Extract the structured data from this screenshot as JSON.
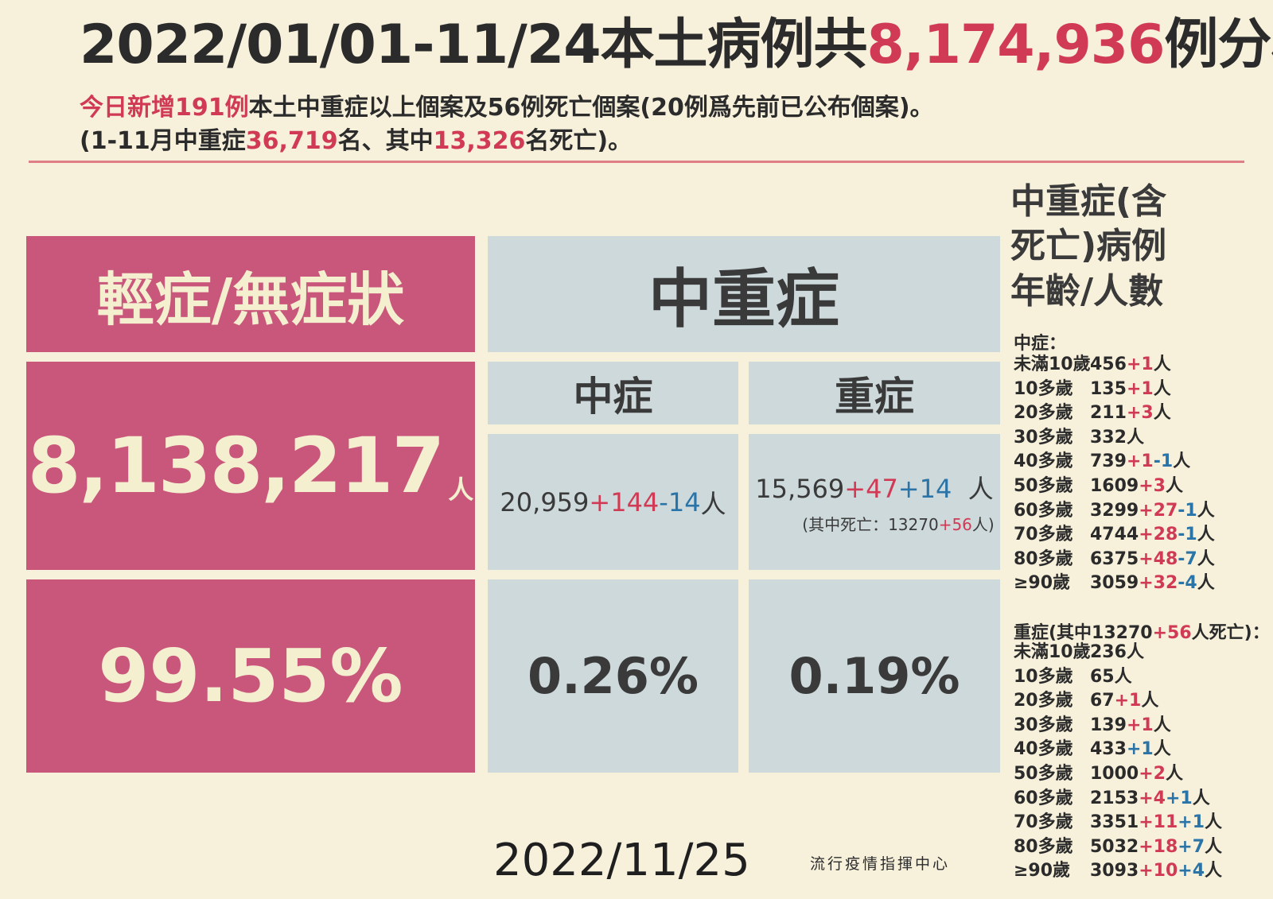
{
  "title": {
    "prefix": "2022/01/01-11/24本土病例共",
    "total": "8,174,936",
    "suffix": "例分析"
  },
  "subtitle1": {
    "p1": "今日新增191例",
    "p2": "本土中重症以上個案及56例死亡個案(20例爲先前已公布個案)。"
  },
  "subtitle2": {
    "p1": "(1-11月中重症",
    "v1": "36,719",
    "p2": "名、其中",
    "v2": "13,326",
    "p3": "名死亡)。"
  },
  "mild": {
    "header": "輕症/無症狀",
    "count": "8,138,217",
    "unit": "人",
    "percent": "99.55%"
  },
  "moderate_severe": {
    "header": "中重症"
  },
  "moderate": {
    "header": "中症",
    "base": "20,959",
    "plus": "+144",
    "minus": "-14",
    "unit": "人",
    "percent": "0.26%"
  },
  "severe": {
    "header": "重症",
    "base": "15,569",
    "plus": "+47",
    "plus2": "+14",
    "unit": "人",
    "death_prefix": "(其中死亡：13270",
    "death_plus": "+56",
    "death_suffix": "人)",
    "percent": "0.19%"
  },
  "sidebar": {
    "title_line1": "中重症(含",
    "title_line2": "死亡)病例",
    "title_line3": "年齡/人數",
    "moderate_header": "中症：",
    "moderate_rows": [
      {
        "age": "未滿10歲",
        "base": "456",
        "plus": "+1",
        "minus": "",
        "unit": "人"
      },
      {
        "age": "10多歲",
        "base": "135",
        "plus": "+1",
        "minus": "",
        "unit": "人"
      },
      {
        "age": "20多歲",
        "base": "211",
        "plus": "+3",
        "minus": "",
        "unit": "人"
      },
      {
        "age": "30多歲",
        "base": "332",
        "plus": "",
        "minus": "",
        "unit": "人"
      },
      {
        "age": "40多歲",
        "base": "739",
        "plus": "+1",
        "minus": "-1",
        "unit": "人"
      },
      {
        "age": "50多歲",
        "base": "1609",
        "plus": "+3",
        "minus": "",
        "unit": "人"
      },
      {
        "age": "60多歲",
        "base": "3299",
        "plus": "+27",
        "minus": "-1",
        "unit": "人"
      },
      {
        "age": "70多歲",
        "base": "4744",
        "plus": "+28",
        "minus": "-1",
        "unit": "人"
      },
      {
        "age": "80多歲",
        "base": "6375",
        "plus": "+48",
        "minus": "-7",
        "unit": "人"
      },
      {
        "age": "≥90歲",
        "base": "3059",
        "plus": "+32",
        "minus": "-4",
        "unit": "人"
      }
    ],
    "severe_header_prefix": "重症(其中13270",
    "severe_header_plus": "+56",
    "severe_header_suffix": "人死亡)：",
    "severe_rows": [
      {
        "age": "未滿10歲",
        "base": "236",
        "plus": "",
        "plus2": "",
        "unit": "人"
      },
      {
        "age": "10多歲",
        "base": "65",
        "plus": "",
        "plus2": "",
        "unit": "人"
      },
      {
        "age": "20多歲",
        "base": "67",
        "plus": "+1",
        "plus2": "",
        "unit": "人"
      },
      {
        "age": "30多歲",
        "base": "139",
        "plus": "+1",
        "plus2": "",
        "unit": "人"
      },
      {
        "age": "40多歲",
        "base": "433",
        "plus": "",
        "plus2": "+1",
        "unit": "人"
      },
      {
        "age": "50多歲",
        "base": "1000",
        "plus": "+2",
        "plus2": "",
        "unit": "人"
      },
      {
        "age": "60多歲",
        "base": "2153",
        "plus": "+4",
        "plus2": "+1",
        "unit": "人"
      },
      {
        "age": "70多歲",
        "base": "3351",
        "plus": "+11",
        "plus2": "+1",
        "unit": "人"
      },
      {
        "age": "80多歲",
        "base": "5032",
        "plus": "+18",
        "plus2": "+7",
        "unit": "人"
      },
      {
        "age": "≥90歲",
        "base": "3093",
        "plus": "+10",
        "plus2": "+4",
        "unit": "人"
      }
    ]
  },
  "footer": {
    "date": "2022/11/25",
    "org": "流行疫情指揮中心"
  },
  "colors": {
    "background": "#f7f1dc",
    "pink": "#c9577c",
    "grey_blue": "#cdd9db",
    "red": "#d13a54",
    "blue": "#2a74a8"
  }
}
